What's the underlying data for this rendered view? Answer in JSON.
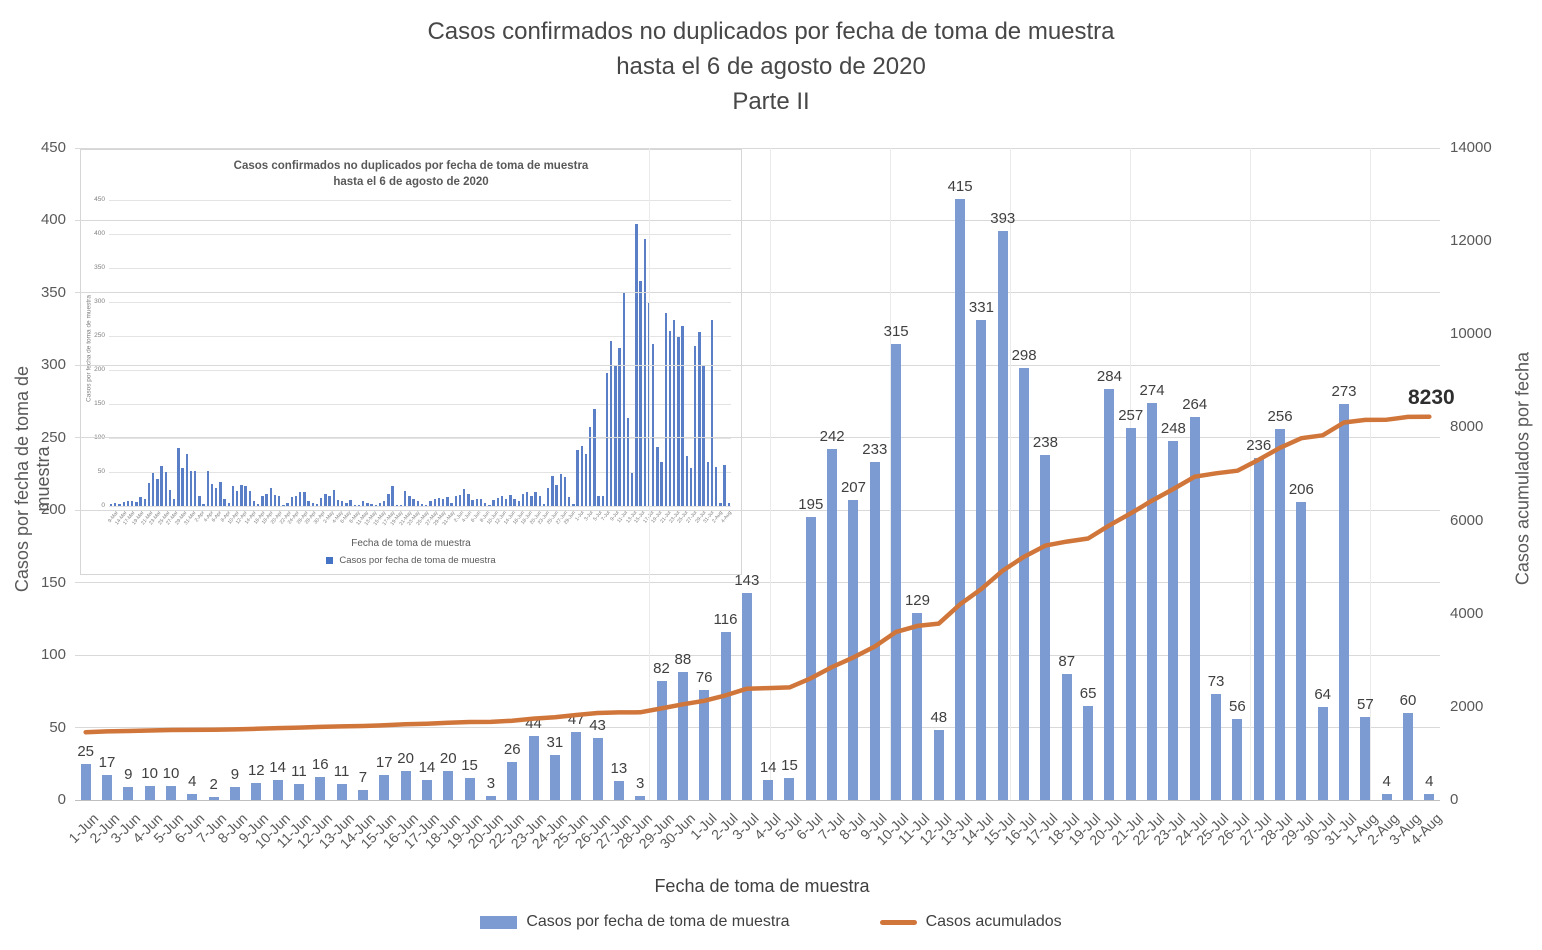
{
  "title": {
    "line1": "Casos confirmados no duplicados por fecha de toma de muestra",
    "line2": "hasta el 6 de agosto de 2020",
    "line3": "Parte II"
  },
  "colors": {
    "bar": "#7c9bd3",
    "line": "#d0763b",
    "inset_bar": "#5b7fc7",
    "grid": "#d9d9d9",
    "axis_text": "#595959",
    "label_text": "#404040"
  },
  "chart_data": {
    "type": "bar",
    "combo": "bar + cumulative line",
    "title": "Casos confirmados no duplicados por fecha de toma de muestra hasta el 6 de agosto de 2020 Parte II",
    "xlabel": "Fecha de toma de muestra",
    "ylabel_left": "Casos por fecha de toma de muestra",
    "ylabel_right": "Casos acumulados por fecha",
    "ylim_left": [
      0,
      450
    ],
    "ylim_right": [
      0,
      14000
    ],
    "grid": "on",
    "legend_position": "bottom",
    "categories": [
      "1-Jun",
      "2-Jun",
      "3-Jun",
      "4-Jun",
      "5-Jun",
      "6-Jun",
      "7-Jun",
      "8-Jun",
      "9-Jun",
      "10-Jun",
      "11-Jun",
      "12-Jun",
      "13-Jun",
      "14-Jun",
      "15-Jun",
      "16-Jun",
      "17-Jun",
      "18-Jun",
      "19-Jun",
      "20-Jun",
      "22-Jun",
      "23-Jun",
      "24-Jun",
      "25-Jun",
      "26-Jun",
      "27-Jun",
      "28-Jun",
      "29-Jun",
      "30-Jun",
      "1-Jul",
      "2-Jul",
      "3-Jul",
      "4-Jul",
      "5-Jul",
      "6-Jul",
      "7-Jul",
      "8-Jul",
      "9-Jul",
      "10-Jul",
      "11-Jul",
      "12-Jul",
      "13-Jul",
      "14-Jul",
      "15-Jul",
      "16-Jul",
      "17-Jul",
      "18-Jul",
      "19-Jul",
      "20-Jul",
      "21-Jul",
      "22-Jul",
      "23-Jul",
      "24-Jul",
      "25-Jul",
      "26-Jul",
      "27-Jul",
      "28-Jul",
      "29-Jul",
      "30-Jul",
      "31-Jul",
      "1-Aug",
      "2-Aug",
      "3-Aug",
      "4-Aug"
    ],
    "series": [
      {
        "name": "Casos por fecha de toma de muestra",
        "type": "bar",
        "axis": "left",
        "values": [
          25,
          17,
          9,
          10,
          10,
          4,
          2,
          9,
          12,
          14,
          11,
          16,
          11,
          7,
          17,
          20,
          14,
          20,
          15,
          3,
          26,
          44,
          31,
          47,
          43,
          13,
          3,
          82,
          88,
          76,
          116,
          143,
          14,
          15,
          195,
          242,
          207,
          233,
          315,
          129,
          48,
          415,
          331,
          393,
          298,
          238,
          87,
          65,
          284,
          257,
          274,
          248,
          264,
          73,
          56,
          236,
          256,
          206,
          64,
          273,
          57,
          4,
          60,
          4
        ]
      },
      {
        "name": "Casos acumulados",
        "type": "line",
        "axis": "right",
        "values_estimated": [
          1456,
          1473,
          1482,
          1492,
          1502,
          1506,
          1508,
          1517,
          1529,
          1543,
          1554,
          1570,
          1581,
          1588,
          1605,
          1625,
          1639,
          1659,
          1674,
          1677,
          1703,
          1747,
          1778,
          1825,
          1868,
          1881,
          1884,
          1966,
          2054,
          2130,
          2246,
          2389,
          2403,
          2418,
          2613,
          2855,
          3062,
          3295,
          3610,
          3739,
          3787,
          4202,
          4533,
          4926,
          5224,
          5462,
          5549,
          5614,
          5898,
          6155,
          6429,
          6677,
          6941,
          7014,
          7070,
          7306,
          7562,
          7768,
          7832,
          8105,
          8162,
          8166,
          8226,
          8230
        ],
        "end_label": "8230"
      }
    ],
    "left_axis_ticks": [
      "450",
      "400",
      "350",
      "300",
      "250",
      "200",
      "150",
      "100",
      "50",
      "0"
    ],
    "right_axis_ticks": [
      "14000",
      "12000",
      "10000",
      "8000",
      "6000",
      "4000",
      "2000",
      "0"
    ],
    "legend": [
      {
        "label": "Casos por fecha de toma de muestra",
        "marker": "bar-swatch"
      },
      {
        "label": "Casos acumulados",
        "marker": "line-swatch"
      }
    ]
  },
  "main": {
    "left_axis_title": "Casos por fecha de toma de muestra",
    "right_axis_title": "Casos acumulados por fecha",
    "x_axis_title": "Fecha de toma de muestra",
    "total_label": "8230"
  },
  "inset": {
    "title_line1": "Casos confirmados no duplicados por fecha de toma de muestra",
    "title_line2": "hasta el 6 de agosto de 2020",
    "ylabel": "Casos por fecha de toma de muestra",
    "xlabel": "Fecha de toma de muestra",
    "legend_label": "Casos por fecha de toma de muestra",
    "y_ticks": [
      "450",
      "400",
      "350",
      "300",
      "250",
      "200",
      "150",
      "100",
      "50",
      "0"
    ],
    "x_labels": [
      "9-Mar",
      "14-Mar",
      "17-Mar",
      "19-Mar",
      "21-Mar",
      "23-Mar",
      "25-Mar",
      "27-Mar",
      "29-Mar",
      "31-Mar",
      "2-Apr",
      "4-Apr",
      "6-Apr",
      "8-Apr",
      "10-Apr",
      "12-Apr",
      "14-Apr",
      "16-Apr",
      "18-Apr",
      "20-Apr",
      "22-Apr",
      "24-Apr",
      "26-Apr",
      "28-Apr",
      "30-Apr",
      "2-May",
      "4-May",
      "6-May",
      "8-May",
      "11-May",
      "13-May",
      "15-May",
      "17-May",
      "19-May",
      "21-May",
      "23-May",
      "25-May",
      "27-May",
      "29-May",
      "31-May",
      "2-Jun",
      "4-Jun",
      "6-Jun",
      "8-Jun",
      "10-Jun",
      "12-Jun",
      "14-Jun",
      "16-Jun",
      "18-Jun",
      "20-Jun",
      "23-Jun",
      "25-Jun",
      "27-Jun",
      "29-Jun",
      "1-Jul",
      "3-Jul",
      "5-Jul",
      "7-Jul",
      "9-Jul",
      "11-Jul",
      "13-Jul",
      "15-Jul",
      "17-Jul",
      "19-Jul",
      "21-Jul",
      "23-Jul",
      "25-Jul",
      "27-Jul",
      "29-Jul",
      "31-Jul",
      "2-Aug",
      "4-Aug"
    ],
    "values_approx_pre_june": [
      3,
      4,
      3,
      6,
      8,
      7,
      6,
      13,
      10,
      34,
      48,
      40,
      59,
      50,
      23,
      11,
      86,
      56,
      76,
      52,
      51,
      14,
      3,
      51,
      33,
      26,
      35,
      11,
      5,
      29,
      22,
      31,
      30,
      22,
      8,
      3,
      15,
      18,
      26,
      16,
      15,
      1,
      5,
      13,
      15,
      20,
      21,
      8,
      5,
      3,
      12,
      18,
      15,
      24,
      9,
      8,
      5,
      9,
      2,
      1,
      7,
      5,
      3,
      1,
      5,
      8,
      17,
      29,
      1,
      1,
      22,
      15,
      10,
      8,
      3,
      1,
      8,
      11,
      12,
      10,
      13,
      5,
      15,
      16
    ]
  }
}
